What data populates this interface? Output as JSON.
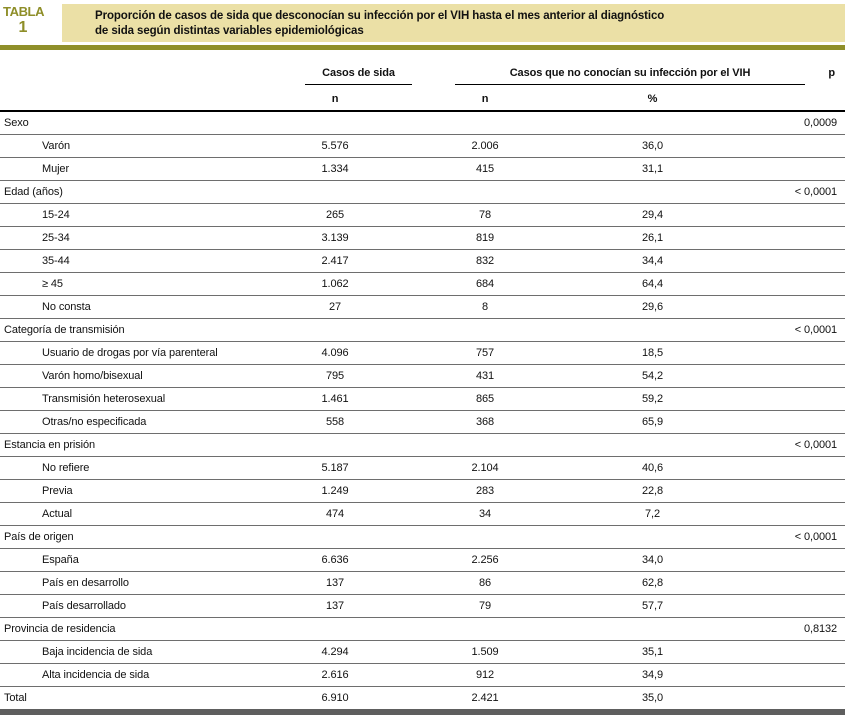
{
  "badge": {
    "word": "TABLA",
    "number": "1"
  },
  "title": {
    "line1": "Proporción de casos de sida que desconocían su infección por el VIH hasta el mes anterior al diagnóstico",
    "line2": "de sida según distintas variables epidemiológicas"
  },
  "columns": {
    "group_casos": "Casos de sida",
    "group_vih": "Casos que no conocían su infección por el VIH",
    "p": "p",
    "sub_n_casos": "n",
    "sub_n_vih": "n",
    "sub_pct": "%"
  },
  "colors": {
    "accent_olive": "#8f8f2a",
    "title_background": "#ebe0a6",
    "bottom_bar": "#5e5e5e",
    "row_line": "#6e6e6e"
  },
  "rows": [
    {
      "type": "category",
      "label": "Sexo",
      "p": "0,0009"
    },
    {
      "type": "data",
      "label": "Varón",
      "n": "5.576",
      "n2": "2.006",
      "pct": "36,0"
    },
    {
      "type": "data",
      "label": "Mujer",
      "n": "1.334",
      "n2": "415",
      "pct": "31,1"
    },
    {
      "type": "category",
      "label": "Edad (años)",
      "p": "< 0,0001"
    },
    {
      "type": "data",
      "label": "15-24",
      "n": "265",
      "n2": "78",
      "pct": "29,4"
    },
    {
      "type": "data",
      "label": "25-34",
      "n": "3.139",
      "n2": "819",
      "pct": "26,1"
    },
    {
      "type": "data",
      "label": "35-44",
      "n": "2.417",
      "n2": "832",
      "pct": "34,4"
    },
    {
      "type": "data",
      "label": "≥ 45",
      "n": "1.062",
      "n2": "684",
      "pct": "64,4"
    },
    {
      "type": "data",
      "label": "No consta",
      "n": "27",
      "n2": "8",
      "pct": "29,6"
    },
    {
      "type": "category",
      "label": "Categoría de transmisión",
      "p": "< 0,0001"
    },
    {
      "type": "data",
      "label": "Usuario de drogas por vía parenteral",
      "n": "4.096",
      "n2": "757",
      "pct": "18,5"
    },
    {
      "type": "data",
      "label": "Varón homo/bisexual",
      "n": "795",
      "n2": "431",
      "pct": "54,2"
    },
    {
      "type": "data",
      "label": "Transmisión heterosexual",
      "n": "1.461",
      "n2": "865",
      "pct": "59,2"
    },
    {
      "type": "data",
      "label": "Otras/no especificada",
      "n": "558",
      "n2": "368",
      "pct": "65,9"
    },
    {
      "type": "category",
      "label": "Estancia en prisión",
      "p": "< 0,0001"
    },
    {
      "type": "data",
      "label": "No refiere",
      "n": "5.187",
      "n2": "2.104",
      "pct": "40,6"
    },
    {
      "type": "data",
      "label": "Previa",
      "n": "1.249",
      "n2": "283",
      "pct": "22,8"
    },
    {
      "type": "data",
      "label": "Actual",
      "n": "474",
      "n2": "34",
      "pct": "7,2"
    },
    {
      "type": "category",
      "label": "País de origen",
      "p": "< 0,0001"
    },
    {
      "type": "data",
      "label": "España",
      "n": "6.636",
      "n2": "2.256",
      "pct": "34,0"
    },
    {
      "type": "data",
      "label": "País en desarrollo",
      "n": "137",
      "n2": "86",
      "pct": "62,8"
    },
    {
      "type": "data",
      "label": "País desarrollado",
      "n": "137",
      "n2": "79",
      "pct": "57,7"
    },
    {
      "type": "category",
      "label": "Provincia de residencia",
      "p": "0,8132"
    },
    {
      "type": "data",
      "label": "Baja incidencia de sida",
      "n": "4.294",
      "n2": "1.509",
      "pct": "35,1"
    },
    {
      "type": "data",
      "label": "Alta incidencia de sida",
      "n": "2.616",
      "n2": "912",
      "pct": "34,9"
    },
    {
      "type": "total",
      "label": "Total",
      "n": "6.910",
      "n2": "2.421",
      "pct": "35,0"
    }
  ]
}
